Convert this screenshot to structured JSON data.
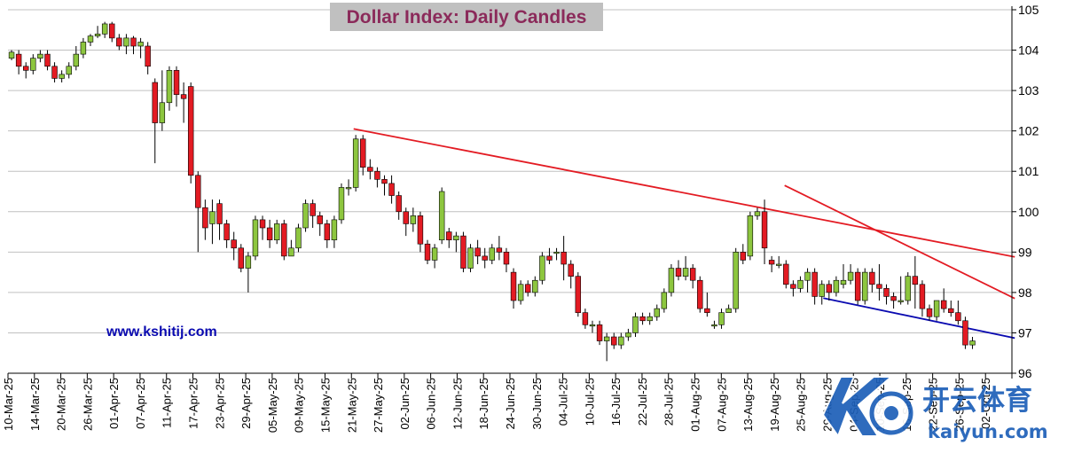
{
  "chart_data": {
    "type": "candlestick",
    "title": "Dollar Index: Daily Candles",
    "ylim": [
      96,
      105
    ],
    "yticks": [
      96,
      97,
      98,
      99,
      100,
      101,
      102,
      103,
      104,
      105
    ],
    "grid": "horizontal",
    "up_color": "#8dc63f",
    "down_color": "#e31b23",
    "x_tick_labels": [
      "10-Mar-25",
      "14-Mar-25",
      "20-Mar-25",
      "26-Mar-25",
      "01-Apr-25",
      "07-Apr-25",
      "11-Apr-25",
      "17-Apr-25",
      "23-Apr-25",
      "29-Apr-25",
      "05-May-25",
      "09-May-25",
      "15-May-25",
      "21-May-25",
      "27-May-25",
      "02-Jun-25",
      "06-Jun-25",
      "12-Jun-25",
      "18-Jun-25",
      "24-Jun-25",
      "30-Jun-25",
      "04-Jul-25",
      "10-Jul-25",
      "16-Jul-25",
      "22-Jul-25",
      "28-Jul-25",
      "01-Aug-25",
      "07-Aug-25",
      "13-Aug-25",
      "19-Aug-25",
      "25-Aug-25",
      "29-Aug-25",
      "04-Sep-25",
      "10-Sep-25",
      "16-Sep-25",
      "22-Sep-25",
      "26-Sep-25",
      "02-Oct-25"
    ],
    "candles": [
      [
        103.8,
        103.95,
        103.75,
        104.0
      ],
      [
        103.9,
        103.6,
        103.4,
        104.0
      ],
      [
        103.6,
        103.5,
        103.3,
        103.7
      ],
      [
        103.5,
        103.8,
        103.4,
        103.9
      ],
      [
        103.8,
        103.9,
        103.7,
        104.0
      ],
      [
        103.9,
        103.6,
        103.5,
        104.0
      ],
      [
        103.6,
        103.3,
        103.2,
        103.7
      ],
      [
        103.3,
        103.4,
        103.2,
        103.5
      ],
      [
        103.4,
        103.6,
        103.3,
        103.7
      ],
      [
        103.6,
        103.9,
        103.5,
        104.1
      ],
      [
        103.9,
        104.2,
        103.8,
        104.3
      ],
      [
        104.2,
        104.35,
        104.1,
        104.4
      ],
      [
        104.35,
        104.4,
        104.3,
        104.6
      ],
      [
        104.4,
        104.65,
        104.3,
        104.7
      ],
      [
        104.65,
        104.3,
        104.2,
        104.7
      ],
      [
        104.3,
        104.1,
        104.0,
        104.4
      ],
      [
        104.1,
        104.3,
        103.9,
        104.4
      ],
      [
        104.3,
        104.1,
        103.9,
        104.35
      ],
      [
        104.1,
        104.2,
        103.8,
        104.3
      ],
      [
        104.1,
        103.6,
        103.4,
        104.2
      ],
      [
        103.2,
        102.2,
        101.2,
        103.3
      ],
      [
        102.2,
        102.7,
        102.0,
        103.5
      ],
      [
        102.7,
        103.5,
        102.5,
        103.6
      ],
      [
        103.5,
        102.9,
        102.6,
        103.6
      ],
      [
        102.9,
        102.8,
        102.2,
        103.2
      ],
      [
        103.1,
        100.9,
        100.7,
        103.2
      ],
      [
        100.9,
        100.1,
        99.0,
        101.0
      ],
      [
        100.1,
        99.6,
        99.3,
        100.3
      ],
      [
        99.7,
        100.0,
        99.2,
        100.3
      ],
      [
        100.2,
        99.7,
        99.3,
        100.3
      ],
      [
        99.7,
        99.3,
        99.1,
        99.8
      ],
      [
        99.3,
        99.1,
        98.8,
        99.5
      ],
      [
        99.1,
        98.6,
        98.5,
        99.2
      ],
      [
        98.6,
        98.9,
        98.0,
        99.0
      ],
      [
        98.9,
        99.8,
        98.8,
        99.9
      ],
      [
        99.8,
        99.6,
        99.3,
        99.9
      ],
      [
        99.6,
        99.3,
        99.1,
        99.8
      ],
      [
        99.3,
        99.7,
        99.2,
        99.8
      ],
      [
        99.7,
        98.9,
        98.8,
        99.8
      ],
      [
        98.9,
        99.1,
        98.9,
        99.3
      ],
      [
        99.1,
        99.6,
        99.0,
        99.7
      ],
      [
        99.6,
        100.2,
        99.5,
        100.3
      ],
      [
        100.2,
        99.9,
        99.6,
        100.3
      ],
      [
        99.9,
        99.7,
        99.4,
        100.0
      ],
      [
        99.7,
        99.3,
        99.1,
        99.8
      ],
      [
        99.3,
        99.8,
        99.1,
        99.9
      ],
      [
        99.8,
        100.6,
        99.7,
        100.7
      ],
      [
        100.6,
        100.6,
        100.4,
        100.8
      ],
      [
        100.6,
        101.8,
        100.5,
        101.9
      ],
      [
        101.8,
        101.1,
        100.9,
        101.9
      ],
      [
        101.1,
        101.0,
        100.8,
        101.3
      ],
      [
        101.0,
        100.8,
        100.6,
        101.1
      ],
      [
        100.8,
        100.7,
        100.4,
        100.9
      ],
      [
        100.7,
        100.4,
        100.2,
        100.9
      ],
      [
        100.4,
        100.0,
        99.8,
        100.5
      ],
      [
        100.0,
        99.7,
        99.4,
        100.1
      ],
      [
        99.7,
        99.9,
        99.5,
        100.1
      ],
      [
        99.9,
        99.2,
        99.0,
        100.0
      ],
      [
        99.2,
        98.8,
        98.7,
        99.3
      ],
      [
        98.8,
        99.1,
        98.6,
        99.2
      ],
      [
        99.3,
        100.5,
        99.2,
        100.6
      ],
      [
        99.5,
        99.3,
        99.1,
        99.6
      ],
      [
        99.3,
        99.4,
        99.0,
        99.5
      ],
      [
        99.4,
        98.6,
        98.5,
        99.5
      ],
      [
        98.6,
        99.1,
        98.5,
        99.2
      ],
      [
        99.1,
        98.9,
        98.7,
        99.3
      ],
      [
        98.9,
        98.8,
        98.6,
        99.1
      ],
      [
        98.8,
        99.1,
        98.7,
        99.2
      ],
      [
        99.1,
        99.0,
        98.8,
        99.4
      ],
      [
        99.0,
        98.7,
        98.5,
        99.1
      ],
      [
        98.5,
        97.8,
        97.6,
        98.6
      ],
      [
        97.8,
        98.2,
        97.7,
        98.3
      ],
      [
        98.2,
        98.0,
        97.9,
        98.3
      ],
      [
        98.0,
        98.3,
        97.9,
        98.4
      ],
      [
        98.3,
        98.9,
        98.2,
        99.0
      ],
      [
        98.9,
        98.8,
        98.7,
        99.1
      ],
      [
        99.0,
        99.0,
        98.8,
        99.1
      ],
      [
        99.0,
        98.7,
        98.3,
        99.4
      ],
      [
        98.7,
        98.4,
        98.1,
        98.8
      ],
      [
        98.4,
        97.5,
        97.4,
        98.5
      ],
      [
        97.5,
        97.2,
        97.1,
        97.6
      ],
      [
        97.2,
        97.2,
        97.0,
        97.3
      ],
      [
        97.2,
        96.8,
        96.7,
        97.3
      ],
      [
        96.8,
        96.9,
        96.3,
        97.0
      ],
      [
        96.9,
        96.7,
        96.6,
        97.0
      ],
      [
        96.7,
        96.9,
        96.6,
        97.0
      ],
      [
        96.9,
        97.0,
        96.8,
        97.1
      ],
      [
        97.0,
        97.4,
        96.9,
        97.5
      ],
      [
        97.4,
        97.3,
        97.2,
        97.5
      ],
      [
        97.3,
        97.4,
        97.2,
        97.5
      ],
      [
        97.4,
        97.6,
        97.3,
        97.7
      ],
      [
        97.6,
        98.0,
        97.5,
        98.1
      ],
      [
        98.0,
        98.6,
        97.9,
        98.7
      ],
      [
        98.6,
        98.4,
        98.3,
        98.8
      ],
      [
        98.4,
        98.6,
        98.3,
        98.9
      ],
      [
        98.6,
        98.3,
        98.1,
        98.7
      ],
      [
        98.3,
        97.6,
        97.5,
        98.4
      ],
      [
        97.6,
        97.5,
        97.4,
        98.0
      ],
      [
        97.2,
        97.2,
        97.1,
        97.3
      ],
      [
        97.2,
        97.5,
        97.1,
        97.6
      ],
      [
        97.5,
        97.6,
        97.5,
        97.7
      ],
      [
        97.6,
        99.0,
        97.5,
        99.1
      ],
      [
        99.0,
        98.8,
        98.7,
        99.2
      ],
      [
        98.9,
        99.9,
        98.8,
        100.0
      ],
      [
        99.9,
        100.0,
        99.8,
        100.1
      ],
      [
        100.0,
        99.1,
        98.7,
        100.3
      ],
      [
        98.8,
        98.7,
        98.5,
        98.9
      ],
      [
        98.7,
        98.7,
        98.6,
        98.9
      ],
      [
        98.7,
        98.2,
        98.1,
        98.8
      ],
      [
        98.2,
        98.1,
        97.9,
        98.3
      ],
      [
        98.1,
        98.3,
        98.0,
        98.4
      ],
      [
        98.3,
        98.5,
        98.0,
        98.6
      ],
      [
        98.5,
        97.9,
        97.7,
        98.6
      ],
      [
        97.9,
        98.2,
        97.7,
        98.3
      ],
      [
        98.2,
        98.0,
        97.8,
        98.3
      ],
      [
        98.0,
        98.3,
        97.9,
        98.4
      ],
      [
        98.2,
        98.3,
        98.1,
        98.7
      ],
      [
        98.3,
        98.5,
        98.2,
        98.7
      ],
      [
        98.5,
        97.8,
        97.7,
        98.6
      ],
      [
        97.8,
        98.5,
        97.7,
        98.6
      ],
      [
        98.5,
        98.2,
        98.0,
        98.6
      ],
      [
        98.2,
        98.1,
        97.8,
        98.7
      ],
      [
        98.1,
        97.9,
        97.7,
        98.2
      ],
      [
        97.9,
        97.8,
        97.6,
        98.0
      ],
      [
        97.8,
        97.8,
        97.7,
        98.4
      ],
      [
        97.8,
        98.4,
        97.7,
        98.5
      ],
      [
        98.4,
        98.2,
        97.6,
        98.9
      ],
      [
        98.2,
        97.6,
        97.4,
        98.3
      ],
      [
        97.6,
        97.4,
        97.3,
        97.7
      ],
      [
        97.4,
        97.8,
        97.3,
        97.8
      ],
      [
        97.8,
        97.6,
        97.5,
        98.1
      ],
      [
        97.6,
        97.5,
        97.4,
        97.8
      ],
      [
        97.5,
        97.3,
        97.2,
        97.8
      ],
      [
        97.3,
        96.7,
        96.6,
        97.4
      ],
      [
        96.7,
        96.8,
        96.6,
        96.9
      ]
    ],
    "trendlines": [
      {
        "color": "#e31b23",
        "start": [
          47.7,
          102.05
        ],
        "end": [
          139.9,
          98.88
        ]
      },
      {
        "color": "#e31b23",
        "start": [
          107.8,
          100.65
        ],
        "end": [
          139.9,
          97.85
        ]
      },
      {
        "color": "#0a0ab0",
        "start": [
          113.2,
          97.86
        ],
        "end": [
          139.9,
          96.87
        ]
      }
    ]
  },
  "website": "www.kshitij.com",
  "watermark": {
    "brand": "开云体育",
    "domain": "kaiyun.com"
  },
  "colors": {
    "title": "#8b2a5a",
    "title_box": "#c0c0c0",
    "grid": "#c0c0c0"
  }
}
